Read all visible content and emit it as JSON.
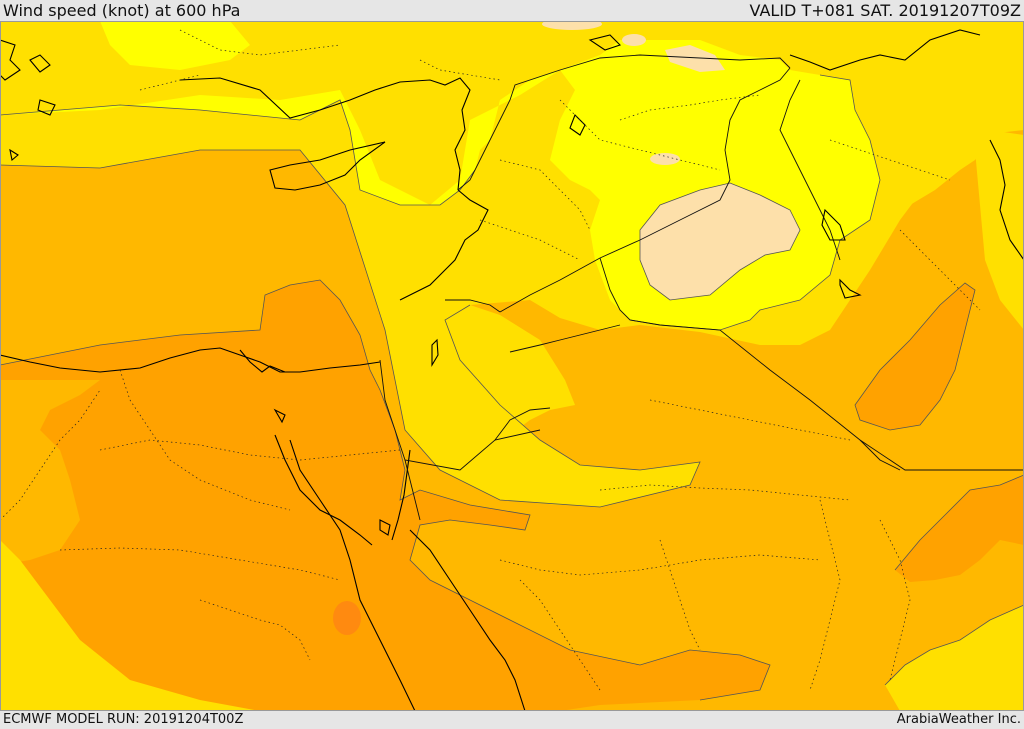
{
  "header": {
    "title": "Wind speed (knot) at 600 hPa",
    "valid_time": "VALID T+081 SAT. 20191207T09Z"
  },
  "footer": {
    "model_run": "ECMWF MODEL RUN: 20191204T00Z",
    "credit": "ArabiaWeather Inc."
  },
  "map": {
    "variable": "wind speed",
    "level": "600 hPa",
    "units": "knot",
    "palette": {
      "very_light": "#fde0aa",
      "light": "#ffff00",
      "light_mid": "#ffe000",
      "mid": "#ffb800",
      "mid_dark": "#ffa200",
      "dark": "#ff8a10"
    },
    "colors": {
      "coastline": "#000000",
      "border": "#111111",
      "contour": "#555555"
    }
  }
}
